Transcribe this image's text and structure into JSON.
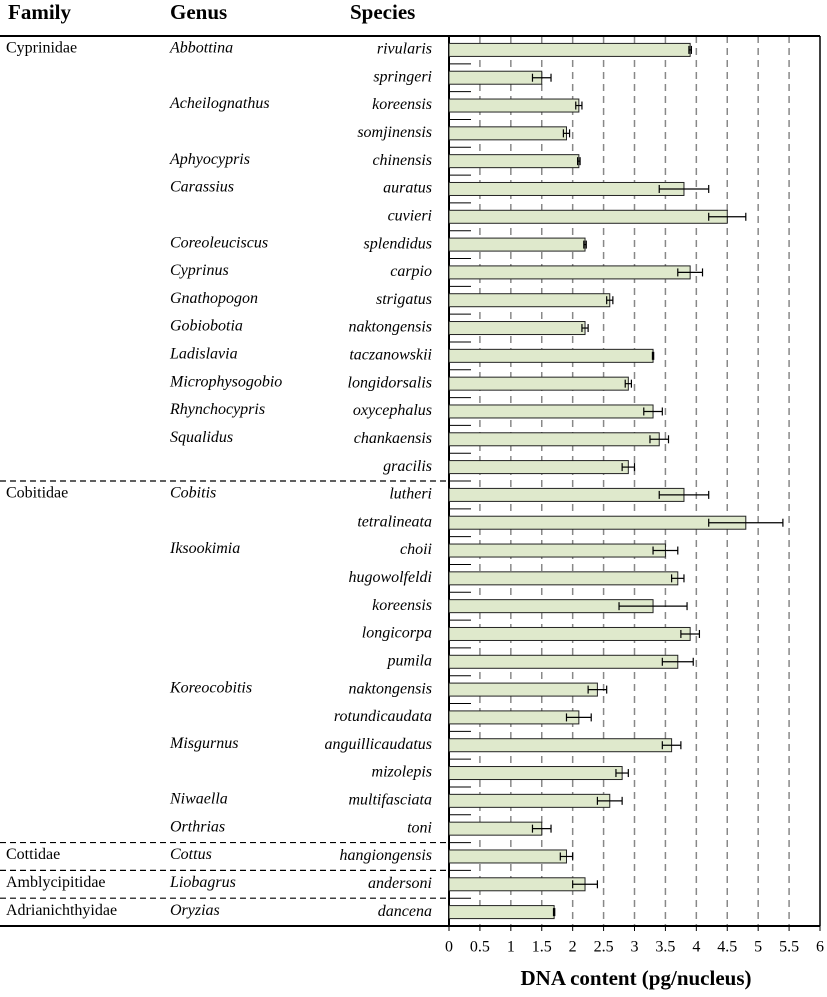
{
  "chart_data": {
    "type": "bar",
    "orientation": "horizontal",
    "column_headers": {
      "family": "Family",
      "genus": "Genus",
      "species": "Species"
    },
    "xlabel": "DNA content (pg/nucleus)",
    "categories": [
      "rivularis",
      "springeri",
      "koreensis",
      "somjinensis",
      "chinensis",
      "auratus",
      "cuvieri",
      "splendidus",
      "carpio",
      "strigatus",
      "naktongensis",
      "taczanowskii",
      "longidorsalis",
      "oxycephalus",
      "chankaensis",
      "gracilis",
      "lutheri",
      "tetralineata",
      "choii",
      "hugowolfeldi",
      "koreensis",
      "longicorpa",
      "pumila",
      "naktongensis",
      "rotundicaudata",
      "anguillicaudatus",
      "mizolepis",
      "multifasciata",
      "toni",
      "hangiongensis",
      "andersoni",
      "dancena"
    ],
    "genus": [
      "Abbottina",
      null,
      "Acheilognathus",
      null,
      "Aphyocypris",
      "Carassius",
      null,
      "Coreoleuciscus",
      "Cyprinus",
      "Gnathopogon",
      "Gobiobotia",
      "Ladislavia",
      "Microphysogobio",
      "Rhynchocypris",
      "Squalidus",
      null,
      "Cobitis",
      null,
      "Iksookimia",
      null,
      null,
      null,
      null,
      "Koreocobitis",
      null,
      "Misgurnus",
      null,
      "Niwaella",
      "Orthrias",
      "Cottus",
      "Liobagrus",
      "Oryzias"
    ],
    "family": [
      "Cyprinidae",
      null,
      null,
      null,
      null,
      null,
      null,
      null,
      null,
      null,
      null,
      null,
      null,
      null,
      null,
      null,
      "Cobitidae",
      null,
      null,
      null,
      null,
      null,
      null,
      null,
      null,
      null,
      null,
      null,
      null,
      "Cottidae",
      "Amblycipitidae",
      "Adrianichthyidae"
    ],
    "values": [
      3.9,
      1.5,
      2.1,
      1.9,
      2.1,
      3.8,
      4.5,
      2.2,
      3.9,
      2.6,
      2.2,
      3.3,
      2.9,
      3.3,
      3.4,
      2.9,
      3.8,
      4.8,
      3.5,
      3.7,
      3.3,
      3.9,
      3.7,
      2.4,
      2.1,
      3.6,
      2.8,
      2.6,
      1.5,
      1.9,
      2.2,
      1.7
    ],
    "errors": [
      0.02,
      0.15,
      0.05,
      0.05,
      0.02,
      0.4,
      0.3,
      0.02,
      0.2,
      0.05,
      0.05,
      0.01,
      0.05,
      0.15,
      0.15,
      0.1,
      0.4,
      0.6,
      0.2,
      0.1,
      0.55,
      0.15,
      0.25,
      0.15,
      0.2,
      0.15,
      0.1,
      0.2,
      0.15,
      0.1,
      0.2,
      0.01
    ],
    "color": "#dfe9cc",
    "xlim": [
      0,
      6
    ],
    "xticks": [
      0,
      0.5,
      1,
      1.5,
      2,
      2.5,
      3,
      3.5,
      4,
      4.5,
      5,
      5.5,
      6
    ],
    "grid": true
  }
}
